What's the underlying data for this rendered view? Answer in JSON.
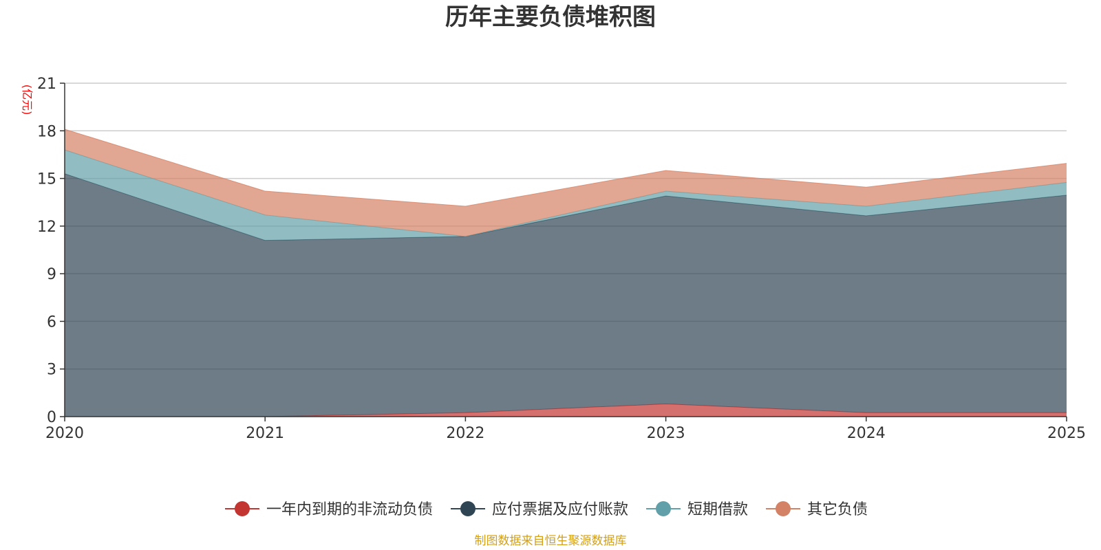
{
  "chart_data": {
    "type": "area",
    "stacked": true,
    "title": "历年主要负债堆积图",
    "unit_label": "(亿元)",
    "x": [
      "2020",
      "2021",
      "2022",
      "2023",
      "2024",
      "2025"
    ],
    "ylim": [
      0,
      21
    ],
    "yticks": [
      0,
      3,
      6,
      9,
      12,
      15,
      18,
      21
    ],
    "grid": true,
    "legend_position": "bottom-center",
    "series": [
      {
        "name": "一年内到期的非流动负债",
        "color": "#c23531",
        "values": [
          0.0,
          0.0,
          0.25,
          0.8,
          0.25,
          0.25
        ]
      },
      {
        "name": "应付票据及应付账款",
        "color": "#2f4554",
        "values": [
          15.3,
          11.1,
          11.1,
          13.1,
          12.4,
          13.7
        ]
      },
      {
        "name": "短期借款",
        "color": "#61a0a8",
        "values": [
          1.5,
          1.6,
          0.0,
          0.3,
          0.6,
          0.8
        ]
      },
      {
        "name": "其它负债",
        "color": "#d48265",
        "values": [
          1.3,
          1.5,
          1.9,
          1.3,
          1.2,
          1.2
        ]
      }
    ],
    "source_note": "制图数据来自恒生聚源数据库"
  }
}
